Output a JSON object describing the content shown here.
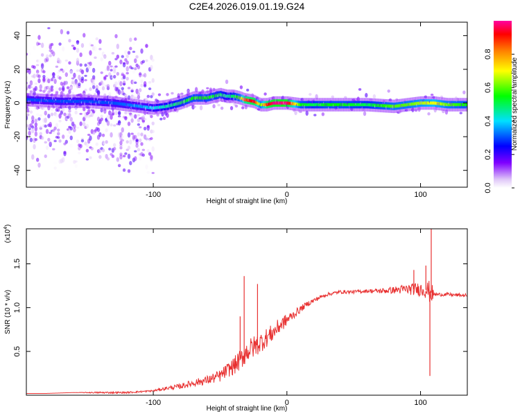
{
  "figure": {
    "title": "C2E4.2026.019.01.19.G24"
  },
  "chart_data": [
    {
      "type": "heatmap",
      "xlabel": "Height of straight line (km)",
      "ylabel": "Frequency (Hz)",
      "xlim": [
        -195,
        135
      ],
      "ylim": [
        -50,
        48
      ],
      "x_ticks": [
        -100,
        0,
        100
      ],
      "y_ticks": [
        -40,
        -20,
        0,
        20,
        40
      ],
      "colorbar": {
        "label": "Normalized spectral amplitude",
        "range": [
          0,
          1
        ],
        "ticks": [
          "0.0",
          "0.2",
          "0.4",
          "0.6",
          "0.8"
        ],
        "tick_values": [
          0.0,
          0.2,
          0.4,
          0.6,
          0.8
        ],
        "colormap": [
          "#ffffff",
          "#e0c8f8",
          "#8000ff",
          "#0000ff",
          "#00e0ff",
          "#00ff00",
          "#ffff00",
          "#ff8000",
          "#ff0000",
          "#ff00a0"
        ]
      },
      "ridge": {
        "x": [
          -195,
          -170,
          -150,
          -130,
          -110,
          -100,
          -90,
          -80,
          -70,
          -60,
          -50,
          -45,
          -40,
          -35,
          -32,
          -25,
          -20,
          -15,
          -10,
          -5,
          0,
          10,
          20,
          30,
          40,
          60,
          80,
          90,
          100,
          110,
          120,
          135
        ],
        "y": [
          2,
          1,
          1,
          0,
          -2,
          -3,
          -2,
          0,
          3,
          3,
          5,
          4,
          4,
          3,
          2,
          1,
          -1,
          -1,
          0,
          0,
          0,
          -1,
          -1,
          -1,
          -1,
          -1,
          -2,
          -1,
          0,
          0,
          -1,
          -1
        ],
        "amplitude": [
          0.3,
          0.3,
          0.3,
          0.3,
          0.35,
          0.4,
          0.45,
          0.5,
          0.55,
          0.55,
          0.5,
          0.45,
          0.5,
          0.6,
          0.85,
          0.95,
          0.6,
          0.9,
          0.98,
          0.98,
          0.98,
          0.55,
          0.5,
          0.55,
          0.55,
          0.5,
          0.6,
          0.6,
          0.65,
          0.7,
          0.6,
          0.55
        ]
      }
    },
    {
      "type": "line",
      "xlabel": "Height of straight line (km)",
      "ylabel": "SNR (10 * v/v)",
      "y_scale_label": "(x10^4)",
      "y_scale_base": "(x10",
      "y_scale_exp": "4",
      "y_scale_close": ")",
      "xlim": [
        -195,
        135
      ],
      "ylim": [
        0,
        1.9
      ],
      "x_ticks": [
        -100,
        0,
        100
      ],
      "y_ticks": [
        0.5,
        1.0,
        1.5
      ],
      "y_tick_labels": [
        "0.5",
        "1.0",
        "1.5"
      ],
      "color": "#e83030",
      "series": [
        {
          "name": "SNR",
          "x": [
            -195,
            -180,
            -160,
            -140,
            -120,
            -100,
            -90,
            -80,
            -70,
            -60,
            -50,
            -45,
            -40,
            -35,
            -30,
            -25,
            -20,
            -15,
            -10,
            -5,
            0,
            5,
            10,
            15,
            20,
            25,
            30,
            40,
            50,
            60,
            70,
            80,
            90,
            100,
            105,
            108,
            110,
            115,
            120,
            130,
            135
          ],
          "y": [
            0.02,
            0.02,
            0.03,
            0.03,
            0.03,
            0.05,
            0.08,
            0.1,
            0.14,
            0.17,
            0.22,
            0.28,
            0.33,
            0.4,
            0.5,
            0.55,
            0.6,
            0.66,
            0.72,
            0.8,
            0.86,
            0.92,
            0.98,
            1.04,
            1.08,
            1.12,
            1.15,
            1.18,
            1.18,
            1.19,
            1.19,
            1.2,
            1.21,
            1.21,
            1.2,
            1.17,
            1.15,
            1.15,
            1.15,
            1.14,
            1.14
          ],
          "noise": [
            0.0,
            0.0,
            0.0,
            0.01,
            0.01,
            0.01,
            0.02,
            0.03,
            0.04,
            0.05,
            0.07,
            0.08,
            0.1,
            0.12,
            0.13,
            0.13,
            0.12,
            0.11,
            0.1,
            0.09,
            0.07,
            0.05,
            0.04,
            0.03,
            0.03,
            0.02,
            0.02,
            0.02,
            0.02,
            0.02,
            0.03,
            0.04,
            0.06,
            0.08,
            0.1,
            0.15,
            0.02,
            0.02,
            0.02,
            0.02,
            0.02
          ]
        }
      ],
      "spikes": [
        {
          "x": -32,
          "y": 1.36
        },
        {
          "x": -22,
          "y": 1.27
        },
        {
          "x": -35,
          "y": 0.9
        },
        {
          "x": 107,
          "y": 0.22
        },
        {
          "x": 108,
          "y": 1.92
        },
        {
          "x": 104,
          "y": 1.48
        },
        {
          "x": 95,
          "y": 1.43
        }
      ]
    }
  ]
}
